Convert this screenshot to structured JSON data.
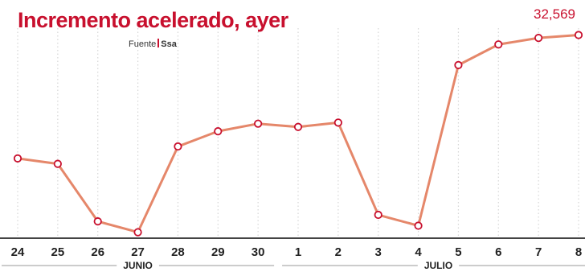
{
  "header": {
    "title": "Incremento acelerado, ayer",
    "source_label": "Fuente",
    "source_name": "Ssa"
  },
  "chart_data": {
    "type": "line",
    "x": [
      "24",
      "25",
      "26",
      "27",
      "28",
      "29",
      "30",
      "1",
      "2",
      "3",
      "4",
      "5",
      "6",
      "7",
      "8"
    ],
    "months": [
      {
        "label": "JUNIO",
        "from": "24",
        "to": "30"
      },
      {
        "label": "JULIO",
        "from": "1",
        "to": "8"
      }
    ],
    "series": [
      {
        "values": [
          21200,
          20700,
          15400,
          14400,
          22300,
          23700,
          24400,
          24100,
          24500,
          16000,
          15000,
          29800,
          31700,
          32300,
          32569
        ]
      }
    ],
    "ylim": [
      14000,
      33200
    ],
    "grid": true,
    "annotations": [
      {
        "x": "8",
        "text": "32,569"
      }
    ],
    "colors": {
      "title": "#c8102e",
      "line": "#e5876a",
      "marker_fill": "#ffffff",
      "marker_stroke": "#c8102e",
      "grid": "#d6d6d6",
      "axis": "#444444",
      "last_label": "#c8102e"
    }
  }
}
